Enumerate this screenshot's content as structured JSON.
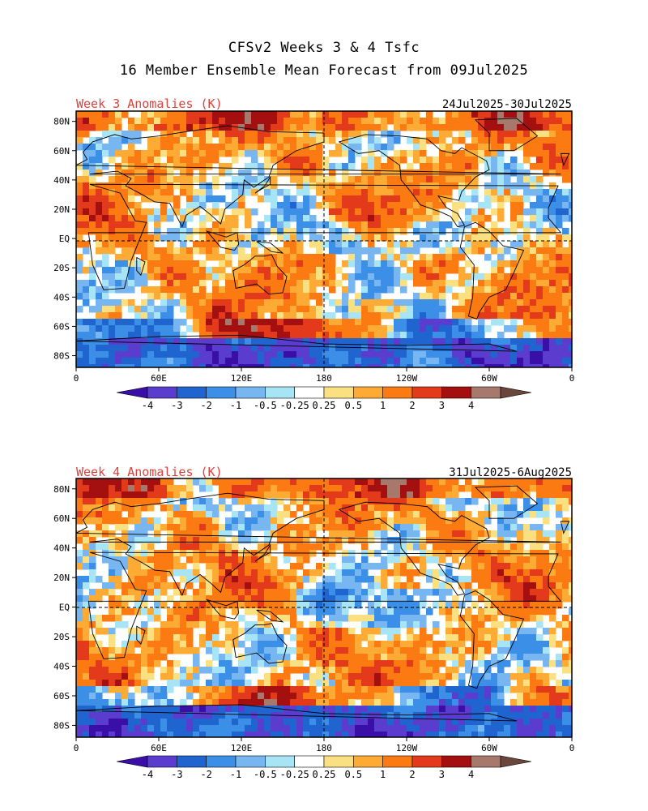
{
  "title": {
    "line1": "CFSv2 Weeks 3 & 4 Tsfc",
    "line2": "16 Member Ensemble Mean Forecast from 09Jul2025"
  },
  "panels": [
    {
      "label": "Week 3 Anomalies (K)",
      "dates": "24Jul2025-30Jul2025"
    },
    {
      "label": "Week 4 Anomalies (K)",
      "dates": "31Jul2025-6Aug2025"
    }
  ],
  "lat_ticks": [
    "80N",
    "60N",
    "40N",
    "20N",
    "EQ",
    "20S",
    "40S",
    "60S",
    "80S"
  ],
  "lon_ticks": [
    "0",
    "60E",
    "120E",
    "180",
    "120W",
    "60W",
    "0"
  ],
  "colorbar": {
    "labels": [
      "-4",
      "-3",
      "-2",
      "-1",
      "-0.5",
      "-0.25",
      "0.25",
      "0.5",
      "1",
      "2",
      "3",
      "4"
    ],
    "colors": [
      "#3a0fa8",
      "#5a3ccf",
      "#1f64cf",
      "#3c8fe6",
      "#78b6f2",
      "#a6e4f6",
      "#ffffff",
      "#fbe081",
      "#fdab35",
      "#fb7a12",
      "#e23a1b",
      "#a40f0f",
      "#a7786c",
      "#6b463c"
    ]
  }
}
